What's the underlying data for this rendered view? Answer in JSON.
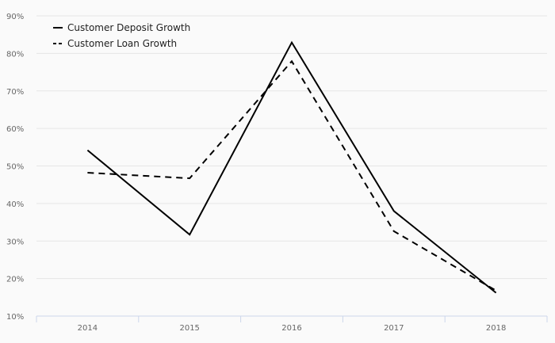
{
  "chart_data": {
    "type": "line",
    "title": "",
    "xlabel": "",
    "ylabel": "",
    "categories": [
      "2014",
      "2015",
      "2016",
      "2017",
      "2018"
    ],
    "ylim": [
      10,
      90
    ],
    "yticks": [
      10,
      20,
      30,
      40,
      50,
      60,
      70,
      80,
      90
    ],
    "ytick_labels": [
      "10%",
      "20%",
      "30%",
      "40%",
      "50%",
      "60%",
      "70%",
      "80%",
      "90%"
    ],
    "grid": true,
    "legend_position": "top-left",
    "series": [
      {
        "name": "Customer Deposit Growth",
        "values": [
          54.2,
          31.7,
          82.9,
          38.0,
          16.2
        ],
        "color": "#000000",
        "dash": "solid"
      },
      {
        "name": "Customer Loan Growth",
        "values": [
          48.2,
          46.7,
          77.9,
          32.6,
          16.8
        ],
        "color": "#000000",
        "dash": "dashed"
      }
    ]
  }
}
